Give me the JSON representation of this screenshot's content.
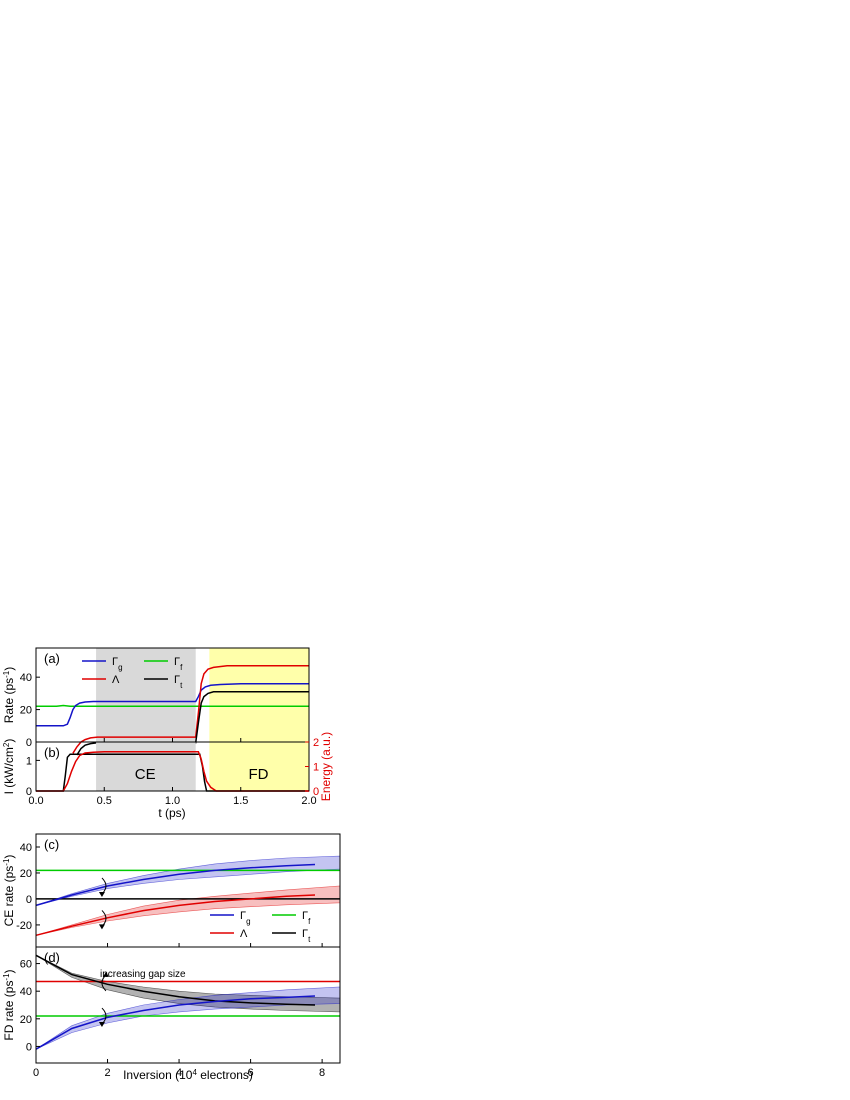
{
  "colors": {
    "gamma_g": "#1414c8",
    "gamma_f": "#00cc00",
    "lambda": "#e00000",
    "gamma_t": "#000000",
    "ce_region": "#d9d9d9",
    "fd_region": "#ffffaa"
  },
  "chart_data": [
    {
      "id": "a",
      "type": "line",
      "panel_label": "(a)",
      "ylabel": "Rate (ps",
      "ylabel_sup": "-1",
      "ylabel_end": ")",
      "xlim": [
        0,
        2.0
      ],
      "ylim": [
        0,
        58
      ],
      "yticks": [
        0,
        20,
        40
      ],
      "shaded_regions": [
        {
          "x_start": 0.44,
          "x_end": 1.17,
          "color": "ce_region"
        },
        {
          "x_start": 1.27,
          "x_end": 2.0,
          "color": "fd_region"
        }
      ],
      "legend": {
        "position": "top-left",
        "entries": [
          {
            "symbol": "Γ",
            "sub": "g",
            "color": "gamma_g"
          },
          {
            "symbol": "Γ",
            "sub": "f",
            "color": "gamma_f"
          },
          {
            "symbol": "Λ",
            "sub": "",
            "color": "lambda"
          },
          {
            "symbol": "Γ",
            "sub": "t",
            "color": "gamma_t"
          }
        ]
      },
      "series": [
        {
          "key": "gamma_f",
          "x": [
            0.0,
            0.15,
            0.2,
            0.25,
            0.4,
            1.0,
            1.5,
            2.0
          ],
          "y": [
            22,
            22,
            22.5,
            22,
            22,
            22,
            22,
            22
          ]
        },
        {
          "key": "gamma_g",
          "x": [
            0.0,
            0.2,
            0.23,
            0.25,
            0.27,
            0.29,
            0.32,
            0.36,
            0.42,
            0.5,
            1.17,
            1.19,
            1.21,
            1.24,
            1.28,
            1.35,
            1.5,
            2.0
          ],
          "y": [
            10,
            10,
            11,
            15,
            20,
            22.5,
            24,
            24.7,
            25,
            25,
            25,
            28,
            32,
            34,
            35,
            35.5,
            36,
            36
          ]
        },
        {
          "key": "lambda",
          "x": [
            0.0,
            0.25,
            0.27,
            0.3,
            0.33,
            0.36,
            0.4,
            0.45,
            0.55,
            1.17,
            1.19,
            1.21,
            1.23,
            1.26,
            1.3,
            1.4,
            2.0
          ],
          "y": [
            null,
            null,
            -7,
            -3,
            0,
            1.5,
            2.5,
            3,
            3,
            3,
            18,
            36,
            42,
            45,
            46,
            47,
            47
          ]
        },
        {
          "key": "gamma_t",
          "x": [
            0.0,
            0.27,
            0.3,
            0.33,
            0.36,
            0.4,
            0.45,
            0.55,
            1.17,
            1.19,
            1.21,
            1.23,
            1.26,
            1.3,
            1.4,
            2.0
          ],
          "y": [
            null,
            null,
            -8,
            -4,
            -2,
            -1,
            -0.5,
            -0.5,
            -0.5,
            12,
            24,
            28,
            30,
            31,
            31,
            31
          ]
        }
      ]
    },
    {
      "id": "b",
      "type": "line",
      "panel_label": "(b)",
      "ylabel": "I (kW/cm",
      "ylabel_sup": "2",
      "ylabel_end": ")",
      "y2label": "Energy (a.u.)",
      "xlabel": "t (ps)",
      "xlim": [
        0,
        2.0
      ],
      "xticks": [
        0.0,
        0.5,
        1.0,
        1.5,
        2.0
      ],
      "xtick_labels": [
        "0.0",
        "0.5",
        "1.0",
        "1.5",
        "2.0"
      ],
      "ylim": [
        0,
        1.6
      ],
      "yticks": [
        0,
        1
      ],
      "y2lim": [
        0,
        2
      ],
      "y2ticks": [
        0,
        1,
        2
      ],
      "region_labels": [
        {
          "text": "CE",
          "x": 0.8
        },
        {
          "text": "FD",
          "x": 1.63
        }
      ],
      "series": [
        {
          "key": "gamma_t",
          "axis": "left",
          "x": [
            0.0,
            0.2,
            0.215,
            0.23,
            0.25,
            1.17,
            1.2,
            1.22,
            1.235,
            1.25,
            2.0
          ],
          "y": [
            0,
            0,
            0.5,
            1.1,
            1.2,
            1.2,
            1.2,
            0.8,
            0.3,
            0,
            0
          ]
        },
        {
          "key": "lambda",
          "axis": "right",
          "x": [
            0.0,
            0.2,
            0.23,
            0.26,
            0.29,
            0.32,
            0.36,
            0.42,
            0.5,
            1.15,
            1.19,
            1.21,
            1.23,
            1.25,
            1.28,
            1.32,
            2.0
          ],
          "y": [
            0,
            0,
            0.3,
            0.8,
            1.2,
            1.45,
            1.55,
            1.58,
            1.6,
            1.6,
            1.6,
            1.3,
            0.8,
            0.4,
            0.15,
            0,
            0
          ]
        }
      ]
    },
    {
      "id": "c",
      "type": "line",
      "panel_label": "(c)",
      "ylabel": "CE rate (ps",
      "ylabel_sup": "-1",
      "ylabel_end": ")",
      "xlim": [
        0,
        8.5
      ],
      "ylim": [
        -37,
        50
      ],
      "yticks": [
        -20,
        0,
        20,
        40
      ],
      "ytick_labels": [
        "-20",
        "0",
        "20",
        "40"
      ],
      "legend": {
        "position": "bottom-right",
        "entries": [
          {
            "symbol": "Γ",
            "sub": "g",
            "color": "gamma_g"
          },
          {
            "symbol": "Γ",
            "sub": "f",
            "color": "gamma_f"
          },
          {
            "symbol": "Λ",
            "sub": "",
            "color": "lambda"
          },
          {
            "symbol": "Γ",
            "sub": "t",
            "color": "gamma_t"
          }
        ]
      },
      "series": [
        {
          "key": "gamma_f",
          "x": [
            0,
            8.5
          ],
          "y": [
            22,
            22
          ]
        },
        {
          "key": "gamma_t",
          "x": [
            0,
            8.5
          ],
          "y": [
            0,
            0
          ]
        },
        {
          "key": "gamma_g",
          "x": [
            0,
            1,
            2,
            3,
            4,
            5,
            6,
            7,
            7.8
          ],
          "y": [
            -5,
            3,
            10,
            15,
            19,
            22,
            24,
            25.5,
            26.5
          ],
          "band_x": [
            0,
            1,
            2,
            3,
            4,
            5,
            6,
            7,
            8.5
          ],
          "band_low": [
            -5,
            2,
            8,
            12,
            15,
            17,
            19,
            21,
            23
          ],
          "band_high": [
            -5,
            4,
            12,
            18,
            23,
            27,
            29.5,
            31.5,
            33
          ]
        },
        {
          "key": "lambda",
          "x": [
            0,
            1,
            2,
            3,
            4,
            5,
            6,
            7,
            7.8
          ],
          "y": [
            -28,
            -21,
            -14.5,
            -9,
            -5,
            -2,
            0,
            2,
            3
          ],
          "band_x": [
            0,
            1,
            2,
            3,
            4,
            5,
            6,
            7,
            8.5
          ],
          "band_low": [
            -28,
            -22,
            -17,
            -13,
            -10,
            -7.5,
            -6,
            -4.5,
            -3
          ],
          "band_high": [
            -28,
            -20,
            -12,
            -5.5,
            -1,
            2,
            4.5,
            7,
            10
          ]
        }
      ],
      "annotations": [
        {
          "kind": "arrow",
          "x": 1.9,
          "y": 10
        },
        {
          "kind": "arrow",
          "x": 1.9,
          "y": -15
        }
      ]
    },
    {
      "id": "d",
      "type": "line",
      "panel_label": "(d)",
      "ylabel": "FD rate (ps",
      "ylabel_sup": "-1",
      "ylabel_end": ")",
      "xlabel": "Inversion (10",
      "xlabel_sup": "4",
      "xlabel_end": " electrons)",
      "xlim": [
        0,
        8.5
      ],
      "xticks": [
        0,
        2,
        4,
        6,
        8
      ],
      "xtick_labels": [
        "0",
        "2",
        "4",
        "6",
        "8"
      ],
      "ylim": [
        -12,
        72
      ],
      "yticks": [
        0,
        20,
        40,
        60
      ],
      "ytick_labels": [
        "0",
        "20",
        "40",
        "60"
      ],
      "annotation_text": "increasing gap size",
      "series": [
        {
          "key": "gamma_f",
          "x": [
            0,
            8.5
          ],
          "y": [
            22,
            22
          ]
        },
        {
          "key": "lambda",
          "x": [
            0,
            8.5
          ],
          "y": [
            47,
            47
          ]
        },
        {
          "key": "gamma_t",
          "x": [
            0,
            1,
            2,
            3,
            4,
            5,
            6,
            7,
            7.8
          ],
          "y": [
            66,
            52,
            45,
            40,
            36,
            33,
            31.5,
            30.5,
            30
          ],
          "band_x": [
            0,
            1,
            2,
            3,
            4,
            5,
            6,
            7,
            8.5
          ],
          "band_low": [
            66,
            50,
            41,
            35,
            31,
            28.5,
            27,
            26,
            25
          ],
          "band_high": [
            66,
            53,
            47,
            43,
            40,
            38,
            37,
            36,
            35
          ]
        },
        {
          "key": "gamma_g",
          "x": [
            0,
            1,
            2,
            3,
            4,
            5,
            6,
            7,
            7.8
          ],
          "y": [
            -2,
            13,
            21,
            26,
            30,
            32.5,
            34.5,
            35.5,
            36.5
          ],
          "band_x": [
            0,
            1,
            2,
            3,
            4,
            5,
            6,
            7,
            8.5
          ],
          "band_low": [
            -2,
            10,
            17,
            22,
            25,
            27,
            28.5,
            30,
            31
          ],
          "band_high": [
            -2,
            15,
            24,
            30,
            34,
            37,
            39,
            41,
            43
          ]
        }
      ],
      "annotations": [
        {
          "kind": "arrow",
          "x": 1.9,
          "y": 46
        },
        {
          "kind": "arrow",
          "x": 1.9,
          "y": 22
        }
      ]
    }
  ]
}
